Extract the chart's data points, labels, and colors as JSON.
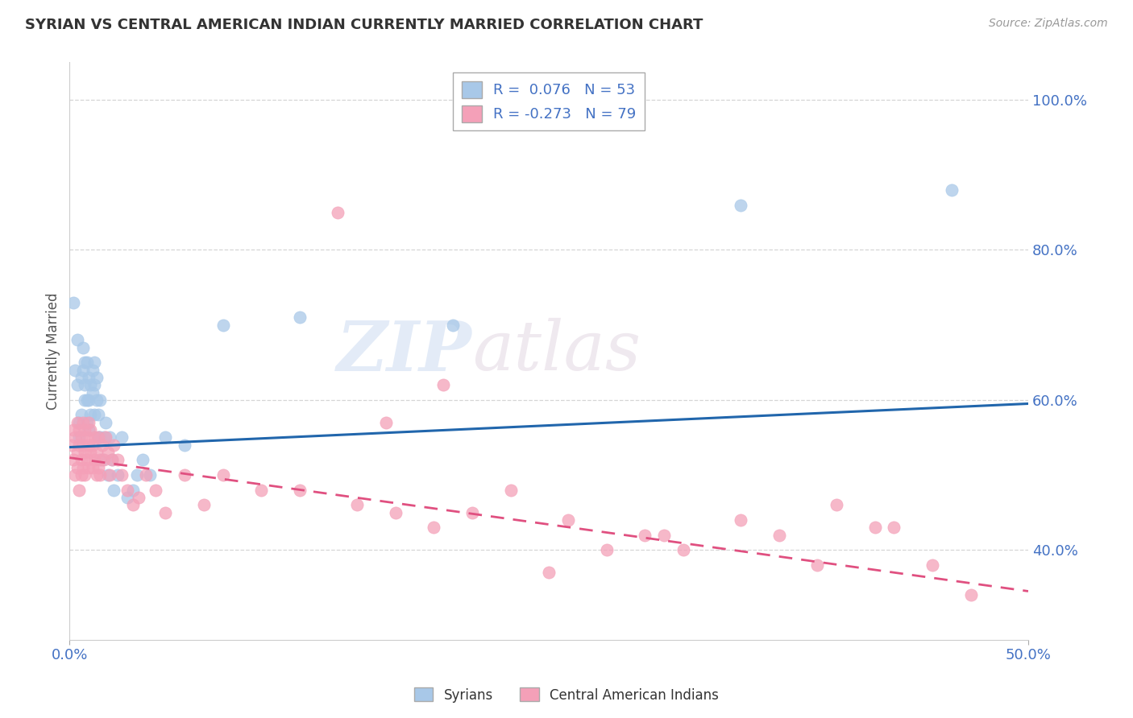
{
  "title": "SYRIAN VS CENTRAL AMERICAN INDIAN CURRENTLY MARRIED CORRELATION CHART",
  "source": "Source: ZipAtlas.com",
  "ylabel": "Currently Married",
  "legend_labels": [
    "Syrians",
    "Central American Indians"
  ],
  "r_values": [
    0.076,
    -0.273
  ],
  "n_values": [
    53,
    79
  ],
  "blue_color": "#a8c8e8",
  "pink_color": "#f4a0b8",
  "blue_line_color": "#2166ac",
  "pink_line_color": "#e05080",
  "background_color": "#ffffff",
  "watermark_zip": "ZIP",
  "watermark_atlas": "atlas",
  "xlim": [
    0.0,
    0.5
  ],
  "ylim": [
    0.28,
    1.05
  ],
  "yticks": [
    0.4,
    0.6,
    0.8,
    1.0
  ],
  "ytick_labels": [
    "40.0%",
    "60.0%",
    "80.0%",
    "100.0%"
  ],
  "blue_line_x0": 0.0,
  "blue_line_x1": 0.5,
  "blue_line_y0": 0.537,
  "blue_line_y1": 0.595,
  "pink_line_x0": 0.0,
  "pink_line_x1": 0.5,
  "pink_line_y0": 0.523,
  "pink_line_y1": 0.345,
  "blue_scatter_x": [
    0.002,
    0.003,
    0.004,
    0.004,
    0.005,
    0.005,
    0.006,
    0.006,
    0.007,
    0.007,
    0.008,
    0.008,
    0.008,
    0.009,
    0.009,
    0.009,
    0.01,
    0.01,
    0.01,
    0.011,
    0.011,
    0.012,
    0.012,
    0.013,
    0.013,
    0.013,
    0.014,
    0.014,
    0.015,
    0.015,
    0.016,
    0.016,
    0.017,
    0.018,
    0.019,
    0.02,
    0.021,
    0.022,
    0.023,
    0.025,
    0.027,
    0.03,
    0.033,
    0.035,
    0.038,
    0.042,
    0.05,
    0.06,
    0.08,
    0.12,
    0.2,
    0.35,
    0.46
  ],
  "blue_scatter_y": [
    0.73,
    0.64,
    0.62,
    0.68,
    0.57,
    0.55,
    0.63,
    0.58,
    0.67,
    0.64,
    0.65,
    0.62,
    0.6,
    0.65,
    0.6,
    0.57,
    0.63,
    0.6,
    0.56,
    0.62,
    0.58,
    0.64,
    0.61,
    0.65,
    0.62,
    0.58,
    0.6,
    0.63,
    0.58,
    0.55,
    0.6,
    0.55,
    0.52,
    0.55,
    0.57,
    0.5,
    0.55,
    0.52,
    0.48,
    0.5,
    0.55,
    0.47,
    0.48,
    0.5,
    0.52,
    0.5,
    0.55,
    0.54,
    0.7,
    0.71,
    0.7,
    0.86,
    0.88
  ],
  "pink_scatter_x": [
    0.001,
    0.002,
    0.002,
    0.003,
    0.003,
    0.004,
    0.004,
    0.004,
    0.005,
    0.005,
    0.005,
    0.006,
    0.006,
    0.006,
    0.007,
    0.007,
    0.007,
    0.008,
    0.008,
    0.008,
    0.009,
    0.009,
    0.01,
    0.01,
    0.01,
    0.011,
    0.011,
    0.012,
    0.012,
    0.013,
    0.013,
    0.014,
    0.014,
    0.015,
    0.015,
    0.016,
    0.016,
    0.017,
    0.018,
    0.019,
    0.02,
    0.021,
    0.022,
    0.023,
    0.025,
    0.027,
    0.03,
    0.033,
    0.036,
    0.04,
    0.045,
    0.05,
    0.06,
    0.07,
    0.08,
    0.1,
    0.12,
    0.15,
    0.17,
    0.19,
    0.21,
    0.23,
    0.26,
    0.28,
    0.3,
    0.32,
    0.35,
    0.37,
    0.4,
    0.42,
    0.45,
    0.47,
    0.14,
    0.165,
    0.195,
    0.25,
    0.31,
    0.39,
    0.43
  ],
  "pink_scatter_y": [
    0.54,
    0.52,
    0.56,
    0.5,
    0.55,
    0.53,
    0.57,
    0.51,
    0.56,
    0.54,
    0.48,
    0.55,
    0.52,
    0.5,
    0.57,
    0.54,
    0.51,
    0.56,
    0.53,
    0.5,
    0.55,
    0.52,
    0.57,
    0.54,
    0.51,
    0.53,
    0.56,
    0.54,
    0.51,
    0.55,
    0.52,
    0.5,
    0.53,
    0.51,
    0.55,
    0.52,
    0.5,
    0.54,
    0.52,
    0.55,
    0.53,
    0.5,
    0.52,
    0.54,
    0.52,
    0.5,
    0.48,
    0.46,
    0.47,
    0.5,
    0.48,
    0.45,
    0.5,
    0.46,
    0.5,
    0.48,
    0.48,
    0.46,
    0.45,
    0.43,
    0.45,
    0.48,
    0.44,
    0.4,
    0.42,
    0.4,
    0.44,
    0.42,
    0.46,
    0.43,
    0.38,
    0.34,
    0.85,
    0.57,
    0.62,
    0.37,
    0.42,
    0.38,
    0.43
  ]
}
